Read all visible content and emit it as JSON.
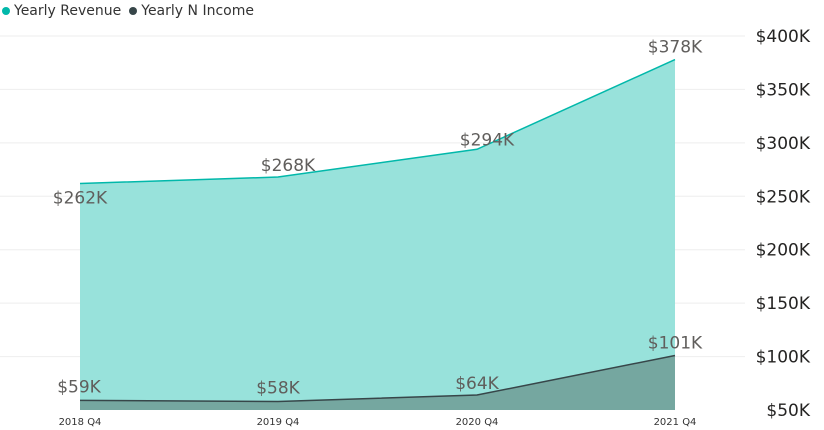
{
  "chart_data": {
    "type": "area",
    "categories": [
      "2018 Q4",
      "2019 Q4",
      "2020 Q4",
      "2021 Q4"
    ],
    "series": [
      {
        "name": "Yearly Revenue",
        "values": [
          262,
          268,
          294,
          378
        ],
        "labels": [
          "$262K",
          "$268K",
          "$294K",
          "$378K"
        ],
        "color": "#01B8AA",
        "fill": "#98E2DB"
      },
      {
        "name": "Yearly N Income",
        "values": [
          59,
          58,
          64,
          101
        ],
        "labels": [
          "$59K",
          "$58K",
          "$64K",
          "$101K"
        ],
        "color": "#374649",
        "fill": "#73A39D"
      }
    ],
    "ylim": [
      50,
      400
    ],
    "yticks": [
      50,
      100,
      150,
      200,
      250,
      300,
      350,
      400
    ],
    "ytick_labels": [
      "$50K",
      "$100K",
      "$150K",
      "$200K",
      "$250K",
      "$300K",
      "$350K",
      "$400K"
    ],
    "yaxis_position": "right",
    "grid": true,
    "legend_position": "top-left",
    "title": "",
    "xlabel": "",
    "ylabel": ""
  }
}
